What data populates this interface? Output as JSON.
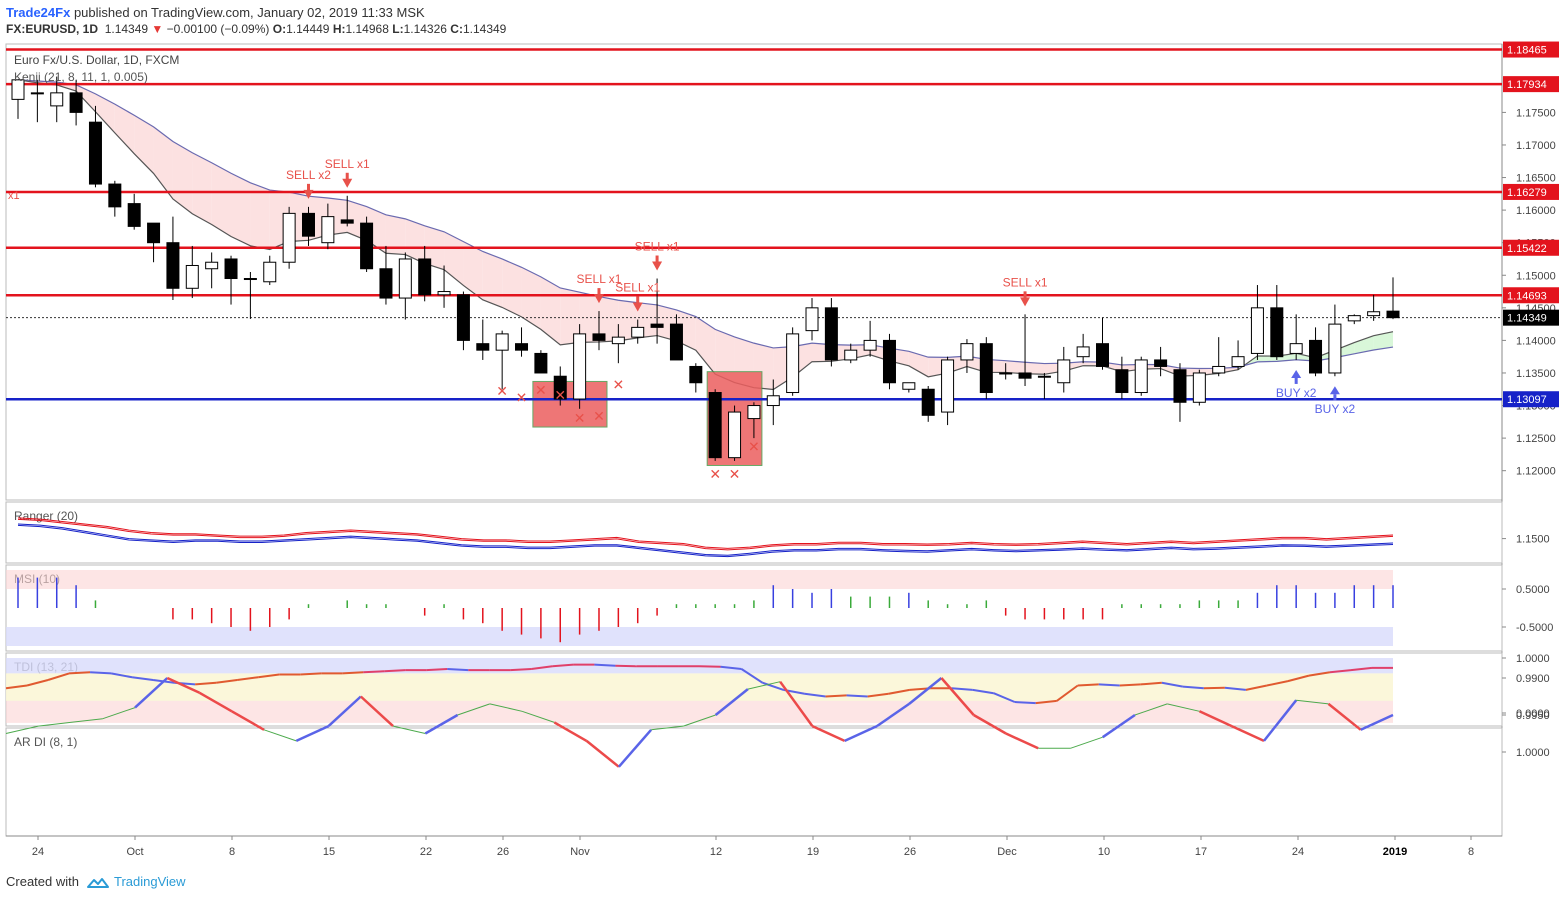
{
  "header": {
    "author": "Trade24Fx",
    "published_text": "published on TradingView.com, January 02, 2019 11:33 MSK",
    "symbol_line": "FX:EURUSD, 1D",
    "last": "1.14349",
    "change": "−0.00100 (−0.09%)",
    "open_label": "O:",
    "open": "1.14449",
    "high_label": "H:",
    "high": "1.14968",
    "low_label": "L:",
    "low": "1.14326",
    "close_label": "C:",
    "close": "1.14349"
  },
  "footer": {
    "created_with": "Created with",
    "brand": "TradingView"
  },
  "colors": {
    "red": "#e3131d",
    "blue": "#1622c8",
    "up": "#ffffff",
    "down": "#000000",
    "marker": "#e8514a",
    "buy": "#5a64e8"
  },
  "chart_data": {
    "type": "candlestick",
    "title": "Euro Fx/U.S. Dollar, 1D, FXCM",
    "indicator_label": "Kenji (21, 8, 11, 1, 0.005)",
    "ylim": [
      1.1155,
      1.1855
    ],
    "y_ticks": [
      "1.17500",
      "1.17000",
      "1.16500",
      "1.16000",
      "1.15500",
      "1.15000",
      "1.14500",
      "1.14000",
      "1.13500",
      "1.13000",
      "1.12500",
      "1.12000"
    ],
    "x_ticks": [
      "24",
      "Oct",
      "8",
      "15",
      "22",
      "26",
      "Nov",
      "12",
      "19",
      "26",
      "Dec",
      "10",
      "17",
      "24",
      "2019",
      "8"
    ],
    "levels": [
      {
        "value": 1.18465,
        "label": "1.18465",
        "color": "#e3131d"
      },
      {
        "value": 1.17934,
        "label": "1.17934",
        "color": "#e3131d"
      },
      {
        "value": 1.16279,
        "label": "1.16279",
        "color": "#e3131d"
      },
      {
        "value": 1.15422,
        "label": "1.15422",
        "color": "#e3131d"
      },
      {
        "value": 1.14693,
        "label": "1.14693",
        "color": "#e3131d"
      },
      {
        "value": 1.13097,
        "label": "1.13097",
        "color": "#1622c8"
      }
    ],
    "last_price": {
      "value": 1.14349,
      "label": "1.14349"
    },
    "candles": [
      {
        "o": 1.177,
        "h": 1.1795,
        "l": 1.174,
        "c": 1.18
      },
      {
        "o": 1.178,
        "h": 1.18,
        "l": 1.1735,
        "c": 1.178
      },
      {
        "o": 1.176,
        "h": 1.1805,
        "l": 1.1735,
        "c": 1.178
      },
      {
        "o": 1.178,
        "h": 1.18,
        "l": 1.173,
        "c": 1.175
      },
      {
        "o": 1.1735,
        "h": 1.176,
        "l": 1.1635,
        "c": 1.164
      },
      {
        "o": 1.164,
        "h": 1.1645,
        "l": 1.159,
        "c": 1.1605
      },
      {
        "o": 1.161,
        "h": 1.1625,
        "l": 1.157,
        "c": 1.1575
      },
      {
        "o": 1.158,
        "h": 1.158,
        "l": 1.152,
        "c": 1.155
      },
      {
        "o": 1.155,
        "h": 1.159,
        "l": 1.1462,
        "c": 1.148
      },
      {
        "o": 1.148,
        "h": 1.1545,
        "l": 1.1465,
        "c": 1.1515
      },
      {
        "o": 1.151,
        "h": 1.1535,
        "l": 1.148,
        "c": 1.152
      },
      {
        "o": 1.1525,
        "h": 1.153,
        "l": 1.1455,
        "c": 1.1495
      },
      {
        "o": 1.1495,
        "h": 1.1505,
        "l": 1.1433,
        "c": 1.1495
      },
      {
        "o": 1.149,
        "h": 1.153,
        "l": 1.1485,
        "c": 1.152
      },
      {
        "o": 1.152,
        "h": 1.1605,
        "l": 1.151,
        "c": 1.1595
      },
      {
        "o": 1.1595,
        "h": 1.1605,
        "l": 1.1545,
        "c": 1.156
      },
      {
        "o": 1.155,
        "h": 1.161,
        "l": 1.154,
        "c": 1.159
      },
      {
        "o": 1.1585,
        "h": 1.1622,
        "l": 1.1575,
        "c": 1.158
      },
      {
        "o": 1.158,
        "h": 1.159,
        "l": 1.1505,
        "c": 1.151
      },
      {
        "o": 1.151,
        "h": 1.1545,
        "l": 1.1455,
        "c": 1.1465
      },
      {
        "o": 1.1465,
        "h": 1.1535,
        "l": 1.1432,
        "c": 1.1525
      },
      {
        "o": 1.1525,
        "h": 1.1545,
        "l": 1.146,
        "c": 1.147
      },
      {
        "o": 1.147,
        "h": 1.1515,
        "l": 1.145,
        "c": 1.1475
      },
      {
        "o": 1.147,
        "h": 1.1475,
        "l": 1.1385,
        "c": 1.14
      },
      {
        "o": 1.1395,
        "h": 1.1432,
        "l": 1.137,
        "c": 1.1385
      },
      {
        "o": 1.1385,
        "h": 1.1415,
        "l": 1.1325,
        "c": 1.141
      },
      {
        "o": 1.1395,
        "h": 1.142,
        "l": 1.1375,
        "c": 1.1385
      },
      {
        "o": 1.138,
        "h": 1.1385,
        "l": 1.135,
        "c": 1.135
      },
      {
        "o": 1.1345,
        "h": 1.136,
        "l": 1.13,
        "c": 1.131
      },
      {
        "o": 1.131,
        "h": 1.1425,
        "l": 1.1295,
        "c": 1.141
      },
      {
        "o": 1.141,
        "h": 1.1445,
        "l": 1.1385,
        "c": 1.14
      },
      {
        "o": 1.1395,
        "h": 1.1425,
        "l": 1.1365,
        "c": 1.1405
      },
      {
        "o": 1.1405,
        "h": 1.1432,
        "l": 1.1395,
        "c": 1.142
      },
      {
        "o": 1.1425,
        "h": 1.1495,
        "l": 1.1395,
        "c": 1.142
      },
      {
        "o": 1.1425,
        "h": 1.144,
        "l": 1.137,
        "c": 1.137
      },
      {
        "o": 1.136,
        "h": 1.1365,
        "l": 1.132,
        "c": 1.1335
      },
      {
        "o": 1.132,
        "h": 1.1325,
        "l": 1.1215,
        "c": 1.122
      },
      {
        "o": 1.122,
        "h": 1.13,
        "l": 1.1215,
        "c": 1.129
      },
      {
        "o": 1.128,
        "h": 1.1305,
        "l": 1.125,
        "c": 1.13
      },
      {
        "o": 1.13,
        "h": 1.134,
        "l": 1.127,
        "c": 1.1315
      },
      {
        "o": 1.132,
        "h": 1.142,
        "l": 1.1315,
        "c": 1.141
      },
      {
        "o": 1.1415,
        "h": 1.1465,
        "l": 1.14,
        "c": 1.145
      },
      {
        "o": 1.145,
        "h": 1.1465,
        "l": 1.136,
        "c": 1.137
      },
      {
        "o": 1.137,
        "h": 1.1395,
        "l": 1.1365,
        "c": 1.1385
      },
      {
        "o": 1.1385,
        "h": 1.143,
        "l": 1.1375,
        "c": 1.14
      },
      {
        "o": 1.14,
        "h": 1.141,
        "l": 1.1325,
        "c": 1.1335
      },
      {
        "o": 1.1325,
        "h": 1.1335,
        "l": 1.132,
        "c": 1.1335
      },
      {
        "o": 1.1325,
        "h": 1.133,
        "l": 1.1275,
        "c": 1.1285
      },
      {
        "o": 1.129,
        "h": 1.1375,
        "l": 1.127,
        "c": 1.137
      },
      {
        "o": 1.137,
        "h": 1.1402,
        "l": 1.135,
        "c": 1.1395
      },
      {
        "o": 1.1395,
        "h": 1.1405,
        "l": 1.131,
        "c": 1.132
      },
      {
        "o": 1.135,
        "h": 1.1365,
        "l": 1.134,
        "c": 1.135
      },
      {
        "o": 1.135,
        "h": 1.144,
        "l": 1.133,
        "c": 1.1342
      },
      {
        "o": 1.1345,
        "h": 1.135,
        "l": 1.131,
        "c": 1.1345
      },
      {
        "o": 1.1335,
        "h": 1.139,
        "l": 1.132,
        "c": 1.137
      },
      {
        "o": 1.1375,
        "h": 1.141,
        "l": 1.1365,
        "c": 1.139
      },
      {
        "o": 1.1395,
        "h": 1.1435,
        "l": 1.1355,
        "c": 1.136
      },
      {
        "o": 1.1355,
        "h": 1.1375,
        "l": 1.131,
        "c": 1.132
      },
      {
        "o": 1.132,
        "h": 1.1375,
        "l": 1.1315,
        "c": 1.137
      },
      {
        "o": 1.137,
        "h": 1.139,
        "l": 1.1345,
        "c": 1.136
      },
      {
        "o": 1.1355,
        "h": 1.1365,
        "l": 1.1275,
        "c": 1.1305
      },
      {
        "o": 1.1305,
        "h": 1.1355,
        "l": 1.13,
        "c": 1.135
      },
      {
        "o": 1.135,
        "h": 1.1405,
        "l": 1.1345,
        "c": 1.136
      },
      {
        "o": 1.136,
        "h": 1.14,
        "l": 1.1355,
        "c": 1.1375
      },
      {
        "o": 1.138,
        "h": 1.1485,
        "l": 1.137,
        "c": 1.145
      },
      {
        "o": 1.145,
        "h": 1.1485,
        "l": 1.137,
        "c": 1.1375
      },
      {
        "o": 1.138,
        "h": 1.144,
        "l": 1.137,
        "c": 1.1395
      },
      {
        "o": 1.14,
        "h": 1.142,
        "l": 1.1345,
        "c": 1.135
      },
      {
        "o": 1.135,
        "h": 1.1455,
        "l": 1.1345,
        "c": 1.1425
      },
      {
        "o": 1.143,
        "h": 1.144,
        "l": 1.1425,
        "c": 1.1438
      },
      {
        "o": 1.1438,
        "h": 1.147,
        "l": 1.143,
        "c": 1.1444
      },
      {
        "o": 1.14449,
        "h": 1.14968,
        "l": 1.14326,
        "c": 1.14349
      }
    ],
    "signals": [
      {
        "label": "SELL x2",
        "type": "sell",
        "bar": 15
      },
      {
        "label": "SELL x1",
        "type": "sell",
        "bar": 17
      },
      {
        "label": "SELL x1",
        "type": "sell",
        "bar": 30
      },
      {
        "label": "SELL x1",
        "type": "sell",
        "bar": 32
      },
      {
        "label": "SELL x1",
        "type": "sell",
        "bar": 33
      },
      {
        "label": "SELL x1",
        "type": "sell",
        "bar": 52
      },
      {
        "label": "BUY x2",
        "type": "buy",
        "bar": 66
      },
      {
        "label": "BUY x2",
        "type": "buy",
        "bar": 68
      }
    ],
    "partial_label": "x1",
    "sub_panels": [
      {
        "name": "Ranger (20)",
        "ticks": [
          "1.1500"
        ]
      },
      {
        "name": "MSI (10)",
        "ticks": [
          "0.5000",
          "-0.5000"
        ]
      },
      {
        "name": "TDI (13, 21)",
        "ticks": [
          "1.0000",
          "0.0000"
        ]
      },
      {
        "name": "AR DI (8, 1)",
        "ticks": [
          "1.0000",
          "0.9950",
          "0.9900"
        ]
      }
    ],
    "msi": [
      0.8,
      0.8,
      0.8,
      0.6,
      0.2,
      0,
      0,
      0,
      -0.3,
      -0.3,
      -0.4,
      -0.5,
      -0.6,
      -0.5,
      -0.3,
      0.1,
      0,
      0.2,
      0.1,
      0.1,
      0,
      -0.2,
      0.1,
      -0.3,
      -0.4,
      -0.6,
      -0.7,
      -0.8,
      -0.9,
      -0.7,
      -0.6,
      -0.5,
      -0.4,
      -0.2,
      0.1,
      0.1,
      0.1,
      0.1,
      0.2,
      0.6,
      0.5,
      0.4,
      0.5,
      0.3,
      0.3,
      0.3,
      0.4,
      0.2,
      0.1,
      0.1,
      0.2,
      -0.2,
      -0.3,
      -0.3,
      -0.3,
      -0.3,
      -0.3,
      0.1,
      0.1,
      0.1,
      0.1,
      0.2,
      0.2,
      0.2,
      0.4,
      0.6,
      0.6,
      0.4,
      0.4,
      0.6,
      0.6,
      0.6
    ],
    "tdi": [
      0.45,
      0.5,
      0.6,
      0.72,
      0.74,
      0.72,
      0.65,
      0.6,
      0.55,
      0.52,
      0.55,
      0.6,
      0.65,
      0.7,
      0.7,
      0.72,
      0.72,
      0.74,
      0.76,
      0.78,
      0.78,
      0.8,
      0.78,
      0.78,
      0.78,
      0.8,
      0.85,
      0.88,
      0.88,
      0.86,
      0.85,
      0.85,
      0.85,
      0.85,
      0.84,
      0.8,
      0.55,
      0.42,
      0.35,
      0.3,
      0.32,
      0.3,
      0.35,
      0.42,
      0.45,
      0.45,
      0.42,
      0.36,
      0.2,
      0.18,
      0.22,
      0.5,
      0.52,
      0.5,
      0.52,
      0.55,
      0.48,
      0.45,
      0.46,
      0.42,
      0.5,
      0.58,
      0.68,
      0.74,
      0.78,
      0.82,
      0.82
    ],
    "ardi": [
      0.9975,
      0.9965,
      0.996,
      0.9955,
      0.994,
      0.99,
      0.992,
      0.9945,
      0.997,
      0.9985,
      0.9965,
      0.9925,
      0.9965,
      0.9975,
      0.995,
      0.9935,
      0.9945,
      0.996,
      0.9985,
      1.002,
      0.997,
      0.9965,
      0.995,
      0.9915,
      0.9905,
      0.9965,
      0.9985,
      0.9965,
      0.9935,
      0.99,
      0.995,
      0.9975,
      0.9995,
      0.9995,
      0.998,
      0.995,
      0.9935,
      0.9945,
      0.9965,
      0.9985,
      0.993,
      0.9935,
      0.997,
      0.995
    ],
    "ranger_upper": [
      1.1585,
      1.158,
      1.157,
      1.156,
      1.155,
      1.1535,
      1.1525,
      1.152,
      1.152,
      1.1515,
      1.151,
      1.151,
      1.1515,
      1.1525,
      1.153,
      1.1535,
      1.153,
      1.1525,
      1.152,
      1.151,
      1.15,
      1.1495,
      1.1495,
      1.149,
      1.149,
      1.1495,
      1.15,
      1.1505,
      1.149,
      1.1485,
      1.148,
      1.1465,
      1.146,
      1.1465,
      1.1475,
      1.148,
      1.148,
      1.1485,
      1.1485,
      1.148,
      1.148,
      1.1478,
      1.148,
      1.1485,
      1.148,
      1.1478,
      1.148,
      1.1485,
      1.149,
      1.1485,
      1.148,
      1.1485,
      1.149,
      1.1485,
      1.149,
      1.1495,
      1.15,
      1.1505,
      1.1505,
      1.15,
      1.1505,
      1.151,
      1.1515
    ],
    "ranger_lower": [
      1.156,
      1.1555,
      1.1545,
      1.153,
      1.1515,
      1.15,
      1.1495,
      1.149,
      1.1495,
      1.1495,
      1.149,
      1.149,
      1.1495,
      1.15,
      1.1505,
      1.151,
      1.1505,
      1.15,
      1.1495,
      1.1485,
      1.1475,
      1.147,
      1.147,
      1.1465,
      1.1465,
      1.147,
      1.1475,
      1.1475,
      1.1465,
      1.1455,
      1.1445,
      1.1435,
      1.1432,
      1.144,
      1.145,
      1.1455,
      1.1455,
      1.146,
      1.146,
      1.1455,
      1.1452,
      1.145,
      1.1455,
      1.146,
      1.1455,
      1.1452,
      1.1455,
      1.1458,
      1.1462,
      1.1458,
      1.1455,
      1.146,
      1.1465,
      1.146,
      1.1462,
      1.1466,
      1.147,
      1.1475,
      1.1474,
      1.147,
      1.1474,
      1.1478,
      1.1482
    ]
  }
}
